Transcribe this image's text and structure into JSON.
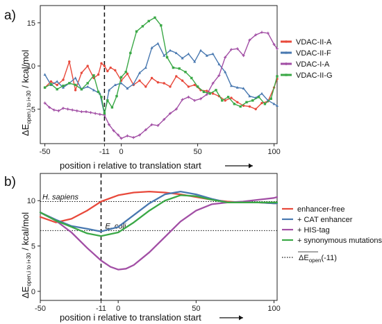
{
  "chart_data": [
    {
      "panel_label": "a)",
      "type": "line",
      "xlabel": "position i relative to translation start",
      "ylabel_main": "ΔE",
      "ylabel_sub": "open,i to i+30",
      "ylabel_unit": " / kcal/mol",
      "xlim": [
        -53,
        102
      ],
      "ylim": [
        1,
        17
      ],
      "x_ticks": [
        -50,
        -11,
        0,
        50,
        100
      ],
      "x_tick_labels": [
        "-50",
        "-11",
        "0",
        "50",
        "100"
      ],
      "y_ticks": [
        5,
        10,
        15
      ],
      "vline_x": -11,
      "legend_position": "right",
      "series": [
        {
          "name": "VDAC-II-A",
          "color": "#e8493b",
          "marker": "circle",
          "x": [
            -50,
            -46,
            -42,
            -38,
            -34,
            -30,
            -26,
            -22,
            -18,
            -15,
            -13,
            -11,
            -9,
            -7,
            -4,
            0,
            4,
            8,
            12,
            16,
            20,
            24,
            28,
            32,
            36,
            40,
            44,
            48,
            52,
            56,
            60,
            64,
            68,
            72,
            76,
            80,
            84,
            88,
            92,
            96,
            100,
            102
          ],
          "y": [
            7.5,
            8.2,
            7.8,
            8.4,
            10.5,
            7.2,
            9.2,
            10.0,
            8.6,
            9.0,
            10.3,
            10.0,
            9.4,
            9.8,
            9.5,
            8.3,
            9.1,
            7.8,
            8.3,
            7.6,
            8.6,
            8.1,
            8.0,
            7.6,
            8.8,
            8.3,
            7.6,
            7.8,
            7.2,
            7.1,
            6.8,
            6.5,
            6.0,
            6.3,
            5.8,
            5.4,
            5.3,
            5.0,
            5.7,
            5.9,
            7.5,
            8.5
          ]
        },
        {
          "name": "VDAC-II-F",
          "color": "#4878b0",
          "marker": "triangle",
          "x": [
            -50,
            -46,
            -42,
            -38,
            -34,
            -30,
            -26,
            -22,
            -18,
            -14,
            -11,
            -8,
            -4,
            0,
            4,
            8,
            12,
            16,
            20,
            24,
            28,
            32,
            36,
            40,
            44,
            48,
            52,
            56,
            60,
            64,
            68,
            72,
            76,
            80,
            84,
            88,
            92,
            96,
            100,
            102
          ],
          "y": [
            9.0,
            7.8,
            8.2,
            7.5,
            8.0,
            8.6,
            7.3,
            7.6,
            7.2,
            6.8,
            4.4,
            7.2,
            7.8,
            8.0,
            7.4,
            7.9,
            9.2,
            9.8,
            12.1,
            12.6,
            11.2,
            11.8,
            11.5,
            10.9,
            11.4,
            10.5,
            11.8,
            11.2,
            11.4,
            10.2,
            9.3,
            7.7,
            7.5,
            7.4,
            6.5,
            6.3,
            6.8,
            6.0,
            5.6,
            5.4
          ]
        },
        {
          "name": "VDAC-I-A",
          "color": "#a24fa5",
          "marker": "plus",
          "x": [
            -50,
            -47,
            -44,
            -41,
            -38,
            -35,
            -32,
            -29,
            -26,
            -23,
            -20,
            -17,
            -14,
            -11,
            -8,
            -5,
            -2,
            0,
            4,
            8,
            12,
            16,
            20,
            24,
            28,
            32,
            36,
            40,
            44,
            48,
            52,
            56,
            60,
            64,
            68,
            72,
            76,
            80,
            84,
            88,
            92,
            96,
            100,
            102
          ],
          "y": [
            5.7,
            5.2,
            4.9,
            4.8,
            5.1,
            5.0,
            4.9,
            4.8,
            4.7,
            4.7,
            4.6,
            4.5,
            4.4,
            4.3,
            3.2,
            2.5,
            2.0,
            1.6,
            1.9,
            1.7,
            2.0,
            2.6,
            3.2,
            3.1,
            3.8,
            4.5,
            5.0,
            6.1,
            6.4,
            6.0,
            6.2,
            6.7,
            8.0,
            8.9,
            11.0,
            11.9,
            12.0,
            11.2,
            13.0,
            13.6,
            13.9,
            13.8,
            12.5,
            12.0
          ]
        },
        {
          "name": "VDAC-II-G",
          "color": "#3aa846",
          "marker": "square",
          "x": [
            -50,
            -46,
            -42,
            -38,
            -34,
            -30,
            -26,
            -22,
            -18,
            -15,
            -13,
            -11,
            -9,
            -6,
            -3,
            0,
            3,
            6,
            10,
            14,
            18,
            22,
            26,
            30,
            34,
            38,
            42,
            46,
            50,
            54,
            58,
            62,
            66,
            70,
            74,
            78,
            82,
            86,
            90,
            94,
            98,
            102
          ],
          "y": [
            7.5,
            7.9,
            7.3,
            7.7,
            8.0,
            7.8,
            7.3,
            8.0,
            8.9,
            7.0,
            6.4,
            4.5,
            6.0,
            5.2,
            6.5,
            8.7,
            9.3,
            11.5,
            14.0,
            14.6,
            15.2,
            15.6,
            14.7,
            11.0,
            9.8,
            9.7,
            9.3,
            8.6,
            7.6,
            7.0,
            6.8,
            7.2,
            6.0,
            6.4,
            5.6,
            5.3,
            5.8,
            6.0,
            6.4,
            5.6,
            6.2,
            8.8
          ]
        }
      ]
    },
    {
      "panel_label": "b)",
      "type": "line",
      "xlabel": "position i relative to translation start",
      "ylabel_main": "ΔE",
      "ylabel_sub": "open,i to i+30",
      "ylabel_unit": " / kcal/mol",
      "xlim": [
        -50,
        102
      ],
      "ylim": [
        -1,
        13
      ],
      "x_ticks": [
        -50,
        -11,
        0,
        50,
        100
      ],
      "x_tick_labels": [
        "-50",
        "-11",
        "0",
        "50",
        "100"
      ],
      "y_ticks": [
        0,
        5,
        10
      ],
      "vline_x": -11,
      "hlines": [
        {
          "y": 9.9,
          "label": "H. sapiens"
        },
        {
          "y": 6.7,
          "label": "E. coli"
        }
      ],
      "legend_position": "right",
      "series": [
        {
          "name": "enhancer-free",
          "color": "#e8493b",
          "x": [
            -50,
            -40,
            -30,
            -20,
            -11,
            0,
            10,
            20,
            30,
            40,
            50,
            60,
            70,
            80,
            90,
            100,
            102
          ],
          "y": [
            8.2,
            7.6,
            8.0,
            8.9,
            9.9,
            10.6,
            10.9,
            11.0,
            10.9,
            10.7,
            10.4,
            10.1,
            9.9,
            9.8,
            9.8,
            9.7,
            9.7
          ]
        },
        {
          "name": "+ CAT enhancer",
          "color": "#4878b0",
          "x": [
            -50,
            -40,
            -30,
            -20,
            -11,
            0,
            10,
            20,
            30,
            40,
            50,
            60,
            70,
            80,
            90,
            100,
            102
          ],
          "y": [
            8.7,
            7.9,
            7.2,
            6.9,
            6.6,
            7.1,
            8.4,
            9.7,
            10.7,
            11.0,
            10.7,
            10.2,
            9.8,
            9.8,
            9.8,
            9.7,
            9.7
          ]
        },
        {
          "name": "+ HIS-tag",
          "color": "#a24fa5",
          "x": [
            -50,
            -40,
            -30,
            -20,
            -11,
            -5,
            0,
            5,
            10,
            20,
            30,
            40,
            50,
            60,
            70,
            80,
            90,
            100,
            102
          ],
          "y": [
            8.7,
            7.8,
            6.5,
            4.8,
            3.4,
            2.7,
            2.4,
            2.5,
            2.9,
            4.3,
            6.0,
            7.7,
            8.9,
            9.6,
            9.8,
            9.9,
            10.1,
            10.3,
            10.4
          ]
        },
        {
          "name": "+ synonymous mutations",
          "color": "#3aa846",
          "x": [
            -50,
            -40,
            -30,
            -20,
            -11,
            0,
            10,
            20,
            30,
            40,
            50,
            60,
            70,
            80,
            90,
            100,
            102
          ],
          "y": [
            8.7,
            7.8,
            7.1,
            6.4,
            6.1,
            6.5,
            7.6,
            8.9,
            10.0,
            10.6,
            10.5,
            10.1,
            9.8,
            9.8,
            9.8,
            9.8,
            9.8
          ]
        }
      ],
      "ref_legend": {
        "label_main": "ΔE",
        "label_sub": "open",
        "label_tail": "(-11)"
      }
    }
  ]
}
